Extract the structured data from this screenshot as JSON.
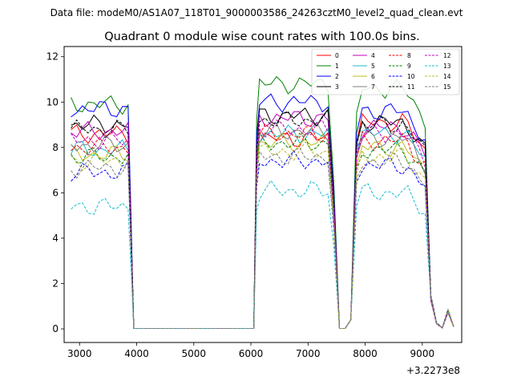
{
  "chart_data": {
    "type": "line",
    "suptitle": "Data file: modeM0/AS1A07_118T01_9000003586_24263cztM0_level2_quad_clean.evt",
    "title": "Quadrant 0 module wise count rates with 100.0s bins.",
    "xlabel": "",
    "ylabel": "",
    "offset_text": "+3.2273e8",
    "xlim": [
      2730,
      9690
    ],
    "ylim": [
      -0.6,
      12.45
    ],
    "xticks": [
      3000,
      4000,
      5000,
      6000,
      7000,
      8000,
      9000
    ],
    "xtick_labels": [
      "3000",
      "4000",
      "5000",
      "6000",
      "7000",
      "8000",
      "9000"
    ],
    "yticks": [
      0,
      2,
      4,
      6,
      8,
      10,
      12
    ],
    "ytick_labels": [
      "0",
      "2",
      "4",
      "6",
      "8",
      "10",
      "12"
    ],
    "legend": {
      "location": "top-right",
      "columns": 4
    },
    "segments": {
      "seg1_start": 2850,
      "seg1_end": 3850,
      "edge1": [
        3900,
        3950
      ],
      "gap1_end": 6050,
      "seg2_rise": 6100,
      "seg2_start": 6150,
      "seg2_end": 7400,
      "drop": [
        7450,
        7550
      ],
      "low": [
        7650,
        7750
      ],
      "rise2": [
        7850
      ],
      "seg3_start": 7950,
      "seg3_end": 9050,
      "tail": [
        9150,
        9250,
        9350,
        9450,
        9550
      ],
      "tail_values": [
        1.4,
        0.25,
        0.05,
        0.8,
        0.1
      ]
    },
    "series": [
      {
        "name": "0",
        "color": "#ff0000",
        "dash": "solid",
        "base": [
          8.6,
          8.4,
          9.1
        ]
      },
      {
        "name": "1",
        "color": "#008000",
        "dash": "solid",
        "base": [
          9.9,
          10.8,
          10.6
        ]
      },
      {
        "name": "2",
        "color": "#0000ff",
        "dash": "solid",
        "base": [
          9.7,
          10.0,
          9.6
        ]
      },
      {
        "name": "3",
        "color": "#000000",
        "dash": "solid",
        "base": [
          9.0,
          9.4,
          9.1
        ]
      },
      {
        "name": "4",
        "color": "#bf00bf",
        "dash": "solid",
        "base": [
          8.7,
          9.3,
          8.9
        ]
      },
      {
        "name": "5",
        "color": "#17becf",
        "dash": "solid",
        "base": [
          7.9,
          8.6,
          8.6
        ]
      },
      {
        "name": "6",
        "color": "#bcbd22",
        "dash": "solid",
        "base": [
          7.7,
          8.2,
          8.0
        ]
      },
      {
        "name": "7",
        "color": "#7f7f7f",
        "dash": "solid",
        "base": [
          8.1,
          8.7,
          8.4
        ]
      },
      {
        "name": "8",
        "color": "#ff0000",
        "dash": "dashed",
        "base": [
          8.0,
          8.6,
          8.3
        ]
      },
      {
        "name": "9",
        "color": "#008000",
        "dash": "dashed",
        "base": [
          7.6,
          8.2,
          7.9
        ]
      },
      {
        "name": "10",
        "color": "#0000ff",
        "dash": "dashed",
        "base": [
          6.9,
          7.4,
          7.2
        ]
      },
      {
        "name": "11",
        "color": "#000000",
        "dash": "dashed",
        "base": [
          8.8,
          9.2,
          9.0
        ]
      },
      {
        "name": "12",
        "color": "#bf00bf",
        "dash": "dashed",
        "base": [
          8.3,
          8.8,
          8.6
        ]
      },
      {
        "name": "13",
        "color": "#17becf",
        "dash": "dashed",
        "base": [
          5.4,
          6.1,
          6.0
        ]
      },
      {
        "name": "14",
        "color": "#bcbd22",
        "dash": "dashed",
        "base": [
          7.4,
          7.8,
          7.6
        ]
      },
      {
        "name": "15",
        "color": "#7f7f7f",
        "dash": "dashed",
        "base": [
          7.1,
          7.6,
          7.4
        ]
      }
    ]
  }
}
